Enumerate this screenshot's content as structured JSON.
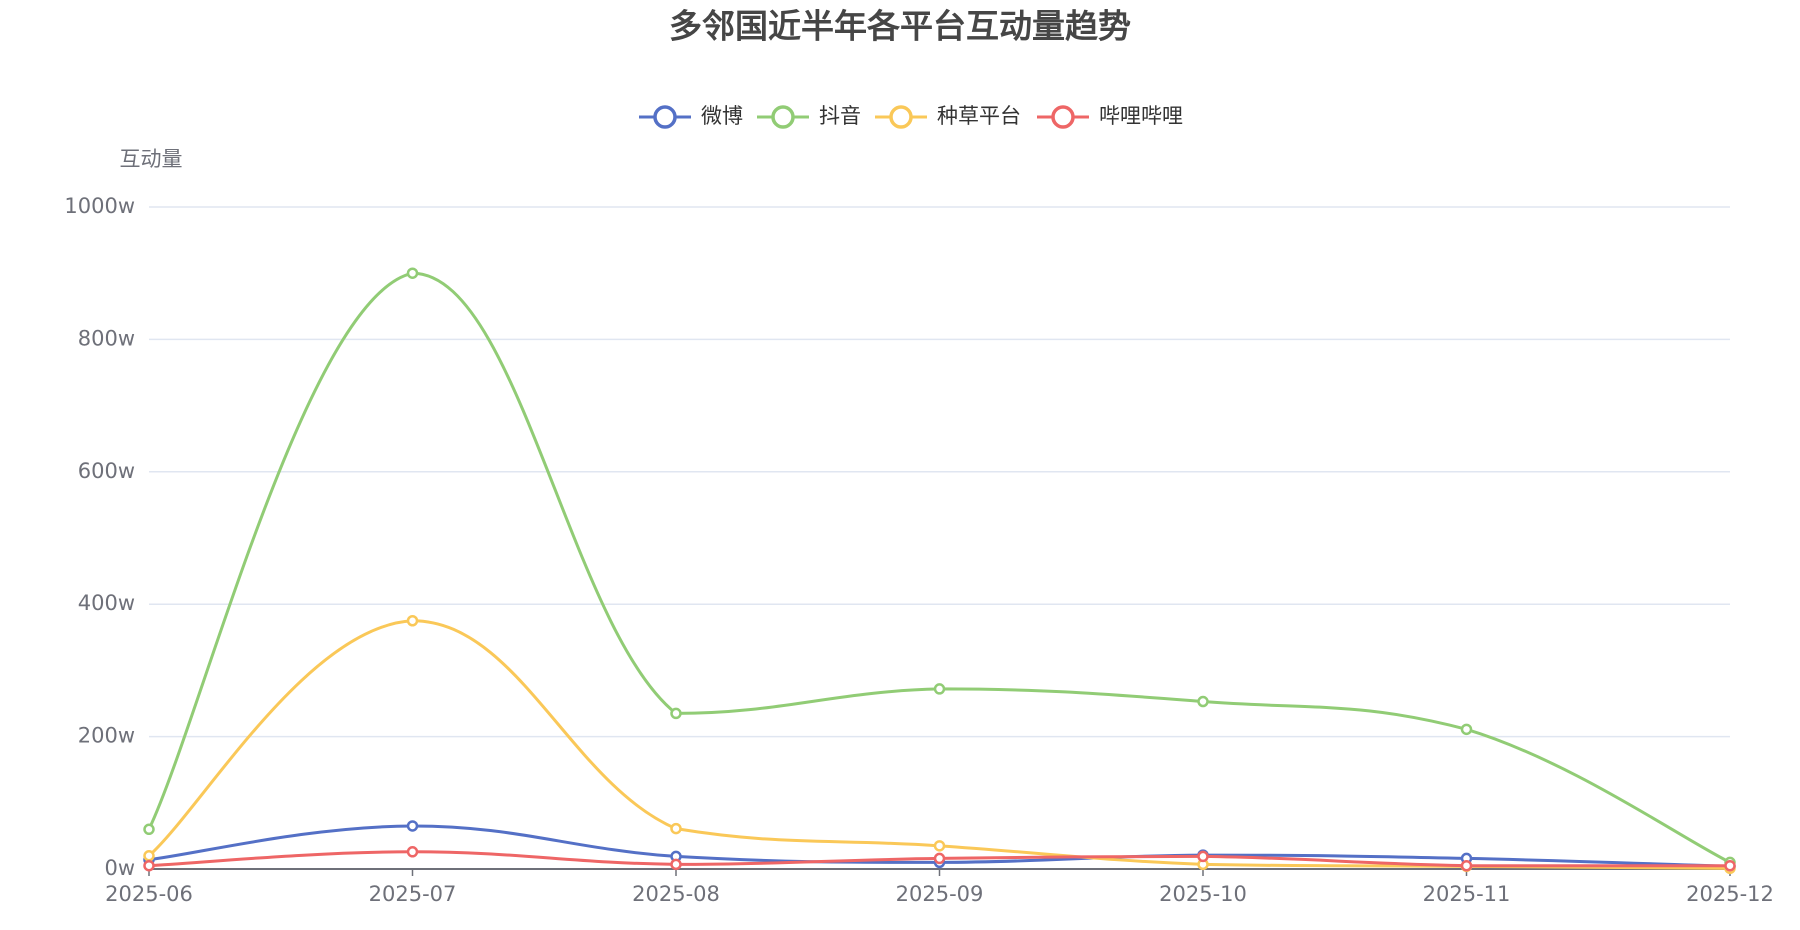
{
  "chart_data": {
    "type": "line",
    "title": "多邻国近半年各平台互动量趋势",
    "y_axis_label": "互动量",
    "categories": [
      "2025-06",
      "2025-07",
      "2025-08",
      "2025-09",
      "2025-10",
      "2025-11",
      "2025-12"
    ],
    "series": [
      {
        "name": "微博",
        "color": "#5470c6",
        "values": [
          14,
          65,
          19,
          10,
          21,
          16,
          4
        ]
      },
      {
        "name": "抖音",
        "color": "#91cc75",
        "values": [
          60,
          900,
          235,
          272,
          253,
          211,
          10
        ]
      },
      {
        "name": "种草平台",
        "color": "#fac858",
        "values": [
          20,
          375,
          61,
          35,
          7,
          4,
          1
        ]
      },
      {
        "name": "哔哩哔哩",
        "color": "#ee6666",
        "values": [
          5,
          26,
          7,
          16,
          19,
          5,
          5
        ]
      }
    ],
    "ylim": [
      0,
      1000
    ],
    "yticks": [
      {
        "value": 0,
        "label": "0w"
      },
      {
        "value": 200,
        "label": "200w"
      },
      {
        "value": 400,
        "label": "400w"
      },
      {
        "value": 600,
        "label": "600w"
      },
      {
        "value": 800,
        "label": "800w"
      },
      {
        "value": 1000,
        "label": "1000w"
      }
    ],
    "grid": true,
    "smooth": true,
    "legend_position": "top"
  }
}
